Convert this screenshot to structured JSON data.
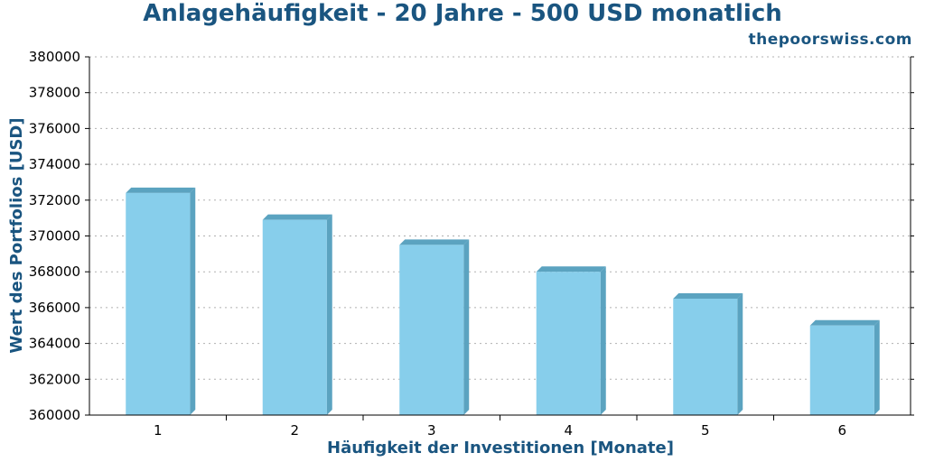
{
  "title": "Anlagehäufigkeit - 20 Jahre - 500 USD monatlich",
  "brand": "thepoorswiss.com",
  "chart_data": {
    "type": "bar",
    "categories": [
      "1",
      "2",
      "3",
      "4",
      "5",
      "6"
    ],
    "values": [
      372400,
      370900,
      369500,
      368000,
      366500,
      365000
    ],
    "xlabel": "Häufigkeit der Investitionen [Monate]",
    "ylabel": "Wert des Portfolios [USD]",
    "ylim": [
      360000,
      380000
    ],
    "yticks": [
      360000,
      362000,
      364000,
      366000,
      368000,
      370000,
      372000,
      374000,
      376000,
      378000,
      380000
    ],
    "grid": true,
    "colors": {
      "bar_front": "#87ceeb",
      "bar_side": "#5ba3c0",
      "bar_top": "#5ba3c0",
      "text_accent": "#1a5580"
    }
  }
}
